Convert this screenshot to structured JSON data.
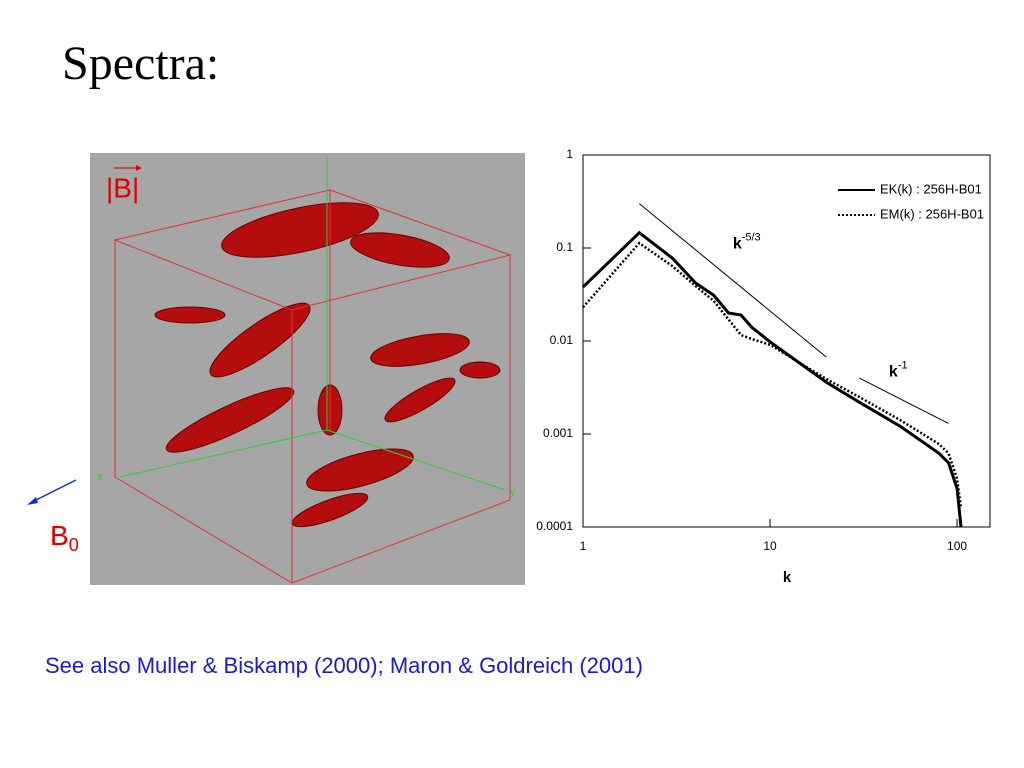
{
  "title": "Spectra:",
  "caption": "See also Muller & Biskamp (2000); Maron & Goldreich (2001)",
  "figure": {
    "field_label": "|B|",
    "axis_x": "x",
    "axis_y": "y",
    "b0": {
      "base": "B",
      "sub": "0"
    }
  },
  "chart_data": {
    "type": "line",
    "log_x": true,
    "log_y": true,
    "xlabel": "k",
    "xlim": [
      1,
      150
    ],
    "ylim": [
      0.0001,
      1
    ],
    "xticks": [
      1,
      10,
      100
    ],
    "yticks": [
      0.0001,
      0.001,
      0.01,
      0.1,
      1
    ],
    "x": [
      1,
      2,
      3,
      4,
      5,
      6,
      7,
      8,
      10,
      20,
      30,
      50,
      80,
      90,
      100,
      105
    ],
    "legend": "upper right",
    "series": [
      {
        "name": "EK(k) : 256H-B01",
        "color": "#000000",
        "style": "solid",
        "values": [
          0.038,
          0.146,
          0.078,
          0.042,
          0.031,
          0.02,
          0.019,
          0.014,
          0.0098,
          0.0036,
          0.0022,
          0.0012,
          0.00062,
          0.00049,
          0.00026,
          0.0001
        ]
      },
      {
        "name": "EM(k) : 256H-B01",
        "color": "#000000",
        "style": "dotted",
        "values": [
          0.023,
          0.113,
          0.064,
          0.039,
          0.027,
          0.017,
          0.0116,
          0.0105,
          0.0091,
          0.0039,
          0.0025,
          0.0014,
          0.00078,
          0.00062,
          0.00033,
          0.00016
        ]
      }
    ],
    "annotations": [
      {
        "text": "k",
        "sup": "-5/3",
        "x": [
          2,
          20
        ],
        "y": [
          0.3,
          0.0067
        ]
      },
      {
        "text": "k",
        "sup": "-1",
        "x": [
          30,
          90
        ],
        "y": [
          0.004,
          0.0013
        ]
      }
    ]
  }
}
